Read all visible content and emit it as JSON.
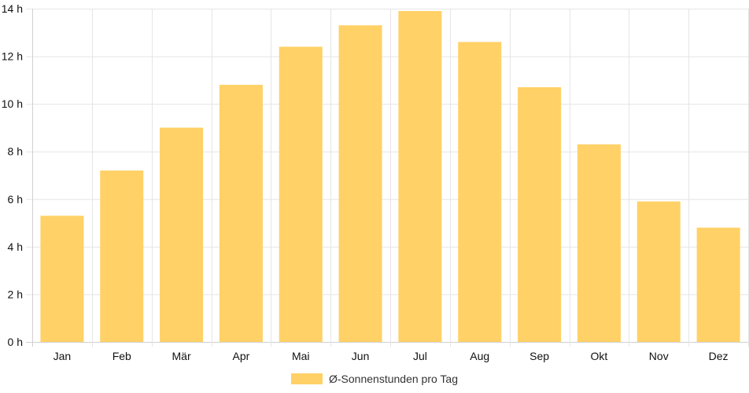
{
  "chart_data": {
    "type": "bar",
    "categories": [
      "Jan",
      "Feb",
      "Mär",
      "Apr",
      "Mai",
      "Jun",
      "Jul",
      "Aug",
      "Sep",
      "Okt",
      "Nov",
      "Dez"
    ],
    "series": [
      {
        "name": "Ø-Sonnenstunden pro Tag",
        "values": [
          5.3,
          7.2,
          9.0,
          10.8,
          12.4,
          13.3,
          13.9,
          12.6,
          10.7,
          8.3,
          5.9,
          4.8
        ],
        "color": "#FFD166"
      }
    ],
    "ylim": [
      0,
      14
    ],
    "yticks": [
      0,
      2,
      4,
      6,
      8,
      10,
      12,
      14
    ],
    "ytick_suffix": " h",
    "grid": true,
    "legend_position": "bottom",
    "title": "",
    "xlabel": "",
    "ylabel": ""
  }
}
